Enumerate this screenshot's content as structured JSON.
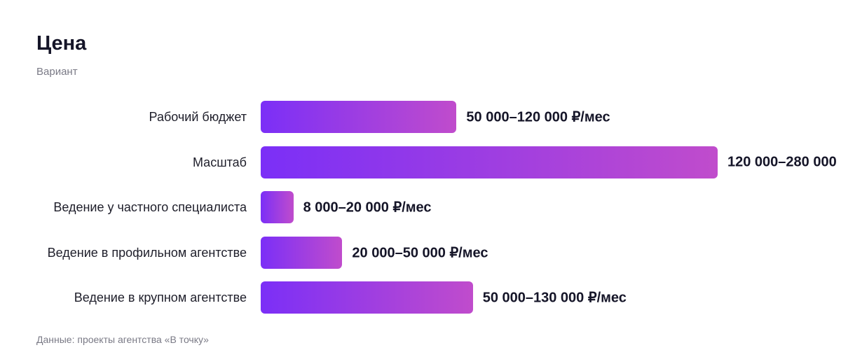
{
  "chart_data": {
    "type": "bar",
    "orientation": "horizontal",
    "title": "Цена",
    "subtitle": "Вариант",
    "categories": [
      "Рабочий бюджет",
      "Масштаб",
      "Ведение у частного специалиста",
      "Ведение в профильном агентстве",
      "Ведение в крупном агентстве"
    ],
    "values": [
      120000,
      280000,
      20000,
      50000,
      130000
    ],
    "value_labels": [
      "50 000–120 000 ₽/мес",
      "120 000–280 000",
      "8 000–20 000 ₽/мес",
      "20 000–50 000 ₽/мес",
      "50 000–130 000 ₽/мес"
    ],
    "color": [
      "#7b2ff7",
      "#c04ccc"
    ],
    "source": "Данные: проекты агентства «В точку»"
  }
}
